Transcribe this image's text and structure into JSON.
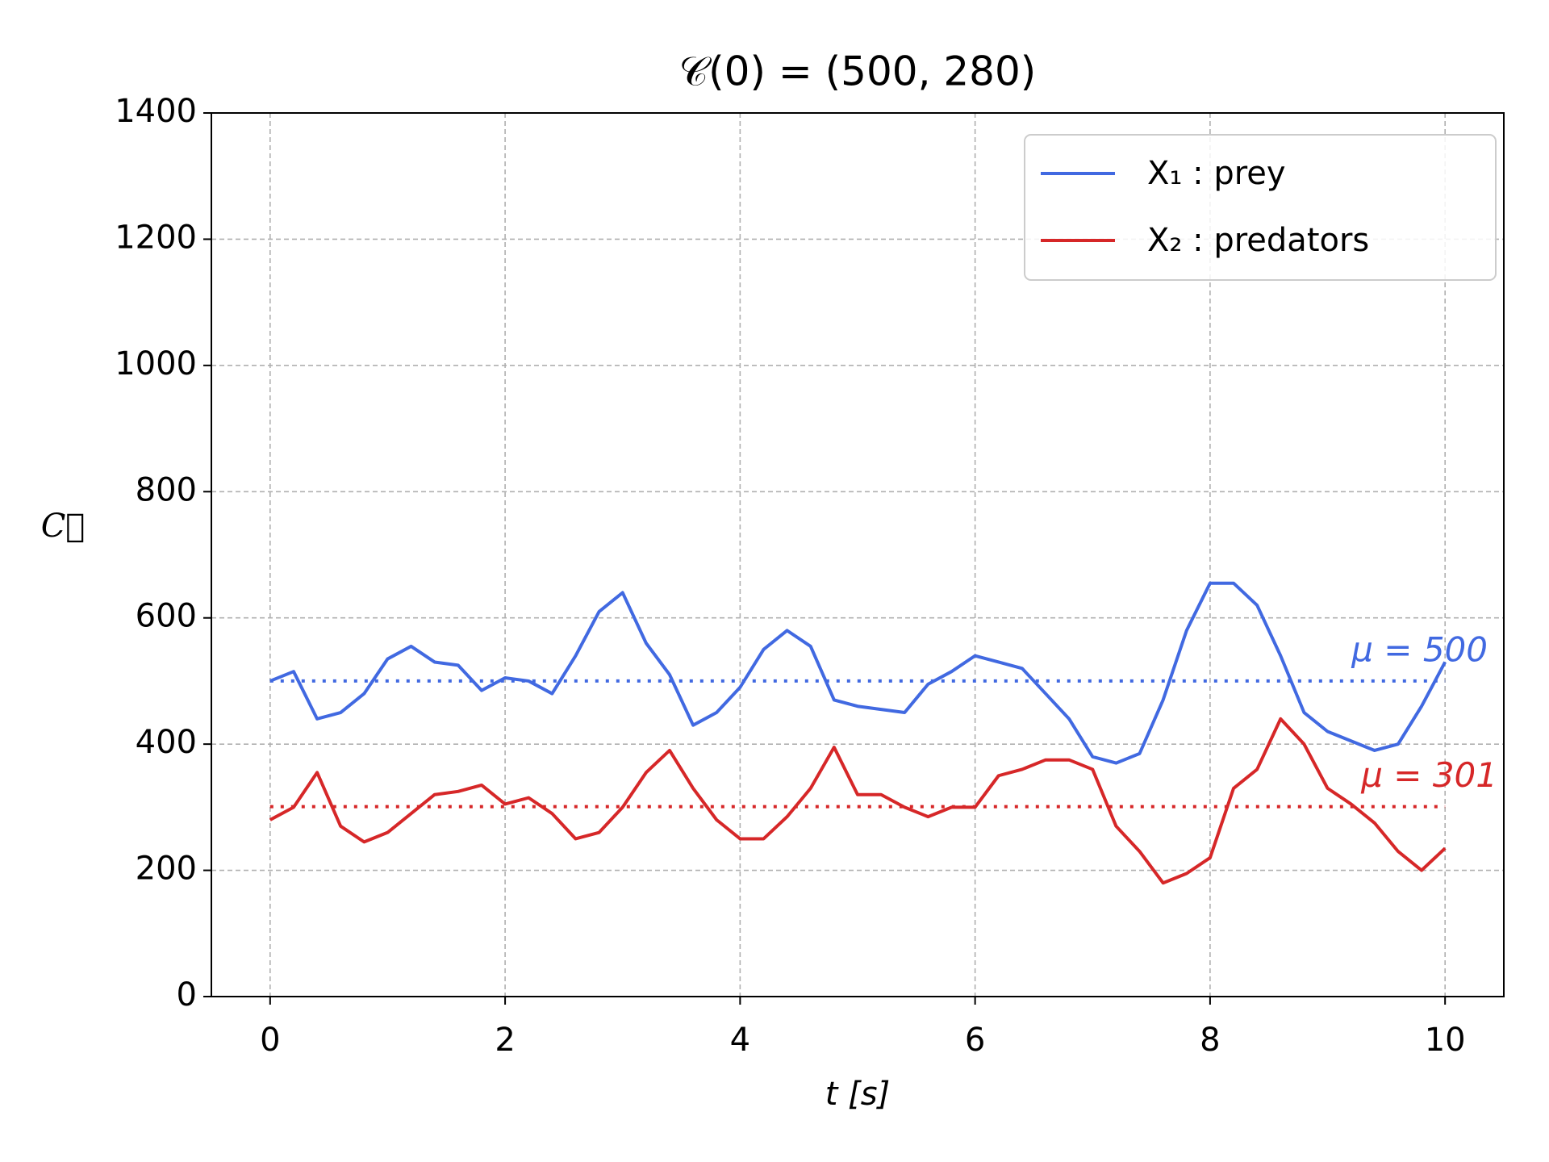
{
  "chart_data": {
    "type": "line",
    "title": "𝒞(0) = (500, 280)",
    "x_label": "t [s]",
    "y_label": "C⃗",
    "x": [
      0,
      0.2,
      0.4,
      0.6,
      0.8,
      1.0,
      1.2,
      1.4,
      1.6,
      1.8,
      2.0,
      2.2,
      2.4,
      2.6,
      2.8,
      3.0,
      3.2,
      3.4,
      3.6,
      3.8,
      4.0,
      4.2,
      4.4,
      4.6,
      4.8,
      5.0,
      5.2,
      5.4,
      5.6,
      5.8,
      6.0,
      6.2,
      6.4,
      6.6,
      6.8,
      7.0,
      7.2,
      7.4,
      7.6,
      7.8,
      8.0,
      8.2,
      8.4,
      8.6,
      8.8,
      9.0,
      9.2,
      9.4,
      9.6,
      9.8,
      10.0
    ],
    "series": [
      {
        "name": "X₁ : prey",
        "color": "#4169e1",
        "values": [
          500,
          515,
          440,
          450,
          480,
          535,
          555,
          530,
          525,
          485,
          505,
          500,
          480,
          540,
          610,
          640,
          560,
          510,
          430,
          450,
          490,
          550,
          580,
          555,
          470,
          460,
          455,
          450,
          495,
          515,
          540,
          530,
          520,
          480,
          440,
          380,
          370,
          385,
          470,
          580,
          655,
          655,
          620,
          540,
          450,
          420,
          405,
          390,
          400,
          460,
          530
        ]
      },
      {
        "name": "X₂ : predators",
        "color": "#d62728",
        "values": [
          280,
          300,
          355,
          270,
          245,
          260,
          290,
          320,
          325,
          335,
          305,
          315,
          290,
          250,
          260,
          300,
          355,
          390,
          330,
          280,
          250,
          250,
          285,
          330,
          395,
          320,
          320,
          300,
          285,
          300,
          300,
          350,
          360,
          375,
          375,
          360,
          270,
          230,
          180,
          195,
          220,
          330,
          360,
          440,
          400,
          330,
          305,
          275,
          230,
          200,
          235
        ]
      }
    ],
    "mean_lines": [
      {
        "value": 500,
        "label": "μ = 500",
        "color": "#4169e1"
      },
      {
        "value": 301,
        "label": "μ = 301",
        "color": "#d62728"
      }
    ],
    "xlim": [
      -0.5,
      10.5
    ],
    "xticks": [
      0,
      2,
      4,
      6,
      8,
      10
    ],
    "ylim": [
      0,
      1400
    ],
    "yticks": [
      0,
      200,
      400,
      600,
      800,
      1000,
      1200,
      1400
    ],
    "grid": true,
    "legend": "upper right"
  }
}
